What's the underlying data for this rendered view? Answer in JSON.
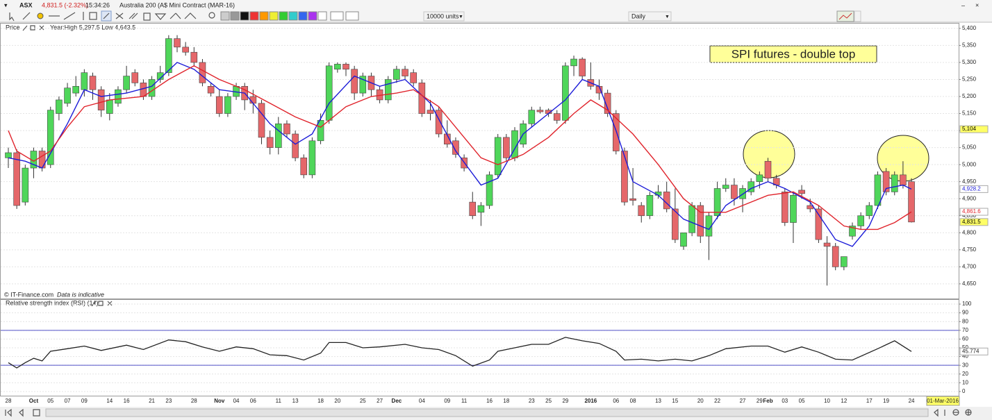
{
  "toolbar": {
    "symbol": "ASX",
    "last": "4,831.5 (-2.32%)",
    "time": "15:34:26",
    "instrument": "Australia 200 (A$ Mini Contract (MAR-16)",
    "units": "10000 units",
    "interval": "Daily"
  },
  "chart_data": [
    {
      "type": "candlestick",
      "title": "Price",
      "subtitle": "Year:High 5,297.5 Low 4,643.5",
      "annotation": "SPI futures - double top",
      "source": "© IT-Finance.com",
      "source_note": "Data is indicative",
      "date_tag": "01-Mar-2016",
      "categories": [
        "28",
        null,
        null,
        "Oct",
        null,
        "05",
        null,
        "07",
        null,
        "09",
        null,
        null,
        "14",
        null,
        "16",
        null,
        null,
        "21",
        null,
        "23",
        null,
        null,
        "28",
        null,
        null,
        "Nov",
        null,
        "04",
        null,
        "06",
        null,
        null,
        "11",
        null,
        "13",
        null,
        null,
        "18",
        null,
        "20",
        null,
        null,
        "25",
        null,
        "27",
        null,
        "Dec",
        null,
        null,
        "04",
        null,
        null,
        "09",
        null,
        "11",
        null,
        null,
        "16",
        null,
        "18",
        null,
        null,
        "23",
        null,
        "25",
        null,
        "29",
        null,
        null,
        "2016",
        null,
        null,
        "06",
        null,
        "08",
        null,
        null,
        "13",
        null,
        "15",
        null,
        null,
        "20",
        null,
        "22",
        null,
        null,
        "27",
        null,
        "29",
        "Feb",
        null,
        "03",
        null,
        "05",
        null,
        null,
        "10",
        null,
        "12",
        null,
        null,
        "17",
        null,
        "19",
        null,
        null,
        "24"
      ],
      "open": [
        5020,
        5035,
        4890,
        4990,
        5040,
        5000,
        5150,
        5180,
        5210,
        5220,
        5260,
        5220,
        5150,
        5180,
        5220,
        5270,
        5240,
        5200,
        5250,
        5270,
        5370,
        5345,
        5330,
        5300,
        5230,
        5200,
        5150,
        5200,
        5230,
        5200,
        5180,
        5080,
        5050,
        5120,
        5090,
        5020,
        4970,
        5070,
        5130,
        5280,
        5295,
        5280,
        5210,
        5260,
        5220,
        5190,
        5250,
        5280,
        5270,
        5240,
        5160,
        5160,
        5090,
        5070,
        5020,
        4890,
        4860,
        4880,
        4970,
        5080,
        5020,
        5060,
        5120,
        5160,
        5160,
        5150,
        5130,
        5290,
        5310,
        5250,
        5230,
        5210,
        5150,
        5040,
        4900,
        4880,
        4850,
        4910,
        4920,
        4870,
        4760,
        4800,
        4880,
        4790,
        4850,
        4930,
        4940,
        4900,
        4920,
        4950,
        5010,
        4960,
        4920,
        4830,
        4925,
        4880,
        4870,
        4770,
        4760,
        4700,
        4790,
        4820,
        4850,
        4880,
        4980,
        4920,
        4970,
        4950
      ],
      "high": [
        5050,
        5045,
        5000,
        5050,
        5050,
        5170,
        5200,
        5240,
        5260,
        5280,
        5270,
        5230,
        5210,
        5230,
        5290,
        5280,
        5250,
        5260,
        5290,
        5380,
        5380,
        5360,
        5345,
        5310,
        5240,
        5220,
        5210,
        5240,
        5240,
        5220,
        5190,
        5100,
        5140,
        5130,
        5100,
        5030,
        5080,
        5150,
        5300,
        5300,
        5300,
        5290,
        5270,
        5270,
        5230,
        5260,
        5290,
        5290,
        5280,
        5250,
        5190,
        5170,
        5130,
        5080,
        5030,
        4920,
        4890,
        4980,
        5090,
        5090,
        5110,
        5130,
        5170,
        5170,
        5165,
        5160,
        5300,
        5320,
        5315,
        5300,
        5250,
        5220,
        5160,
        5050,
        4990,
        4890,
        4920,
        4940,
        4950,
        4930,
        4800,
        4890,
        4890,
        4860,
        4950,
        4960,
        4960,
        4940,
        4960,
        4980,
        5020,
        4970,
        4930,
        4920,
        4940,
        4900,
        4880,
        4790,
        4770,
        4730,
        4830,
        4860,
        4890,
        4980,
        4990,
        4980,
        5010,
        4960
      ],
      "low": [
        4990,
        4870,
        4880,
        4960,
        4980,
        4990,
        5130,
        5170,
        5200,
        5200,
        5190,
        5140,
        5130,
        5170,
        5210,
        5230,
        5190,
        5190,
        5240,
        5260,
        5330,
        5320,
        5290,
        5230,
        5200,
        5140,
        5140,
        5190,
        5160,
        5150,
        5060,
        5030,
        5030,
        5080,
        5010,
        4960,
        4960,
        5060,
        5120,
        5270,
        5260,
        5190,
        5200,
        5200,
        5180,
        5180,
        5240,
        5250,
        5230,
        5140,
        5130,
        5080,
        5050,
        5020,
        4980,
        4840,
        4820,
        4870,
        4960,
        5010,
        5010,
        5050,
        5110,
        5150,
        5140,
        5120,
        5120,
        5260,
        5250,
        5220,
        5190,
        5140,
        5030,
        4880,
        4880,
        4830,
        4840,
        4900,
        4860,
        4770,
        4750,
        4790,
        4770,
        4720,
        4840,
        4920,
        4880,
        4860,
        4910,
        4930,
        4950,
        4930,
        4820,
        4770,
        4900,
        4860,
        4770,
        4645,
        4690,
        4690,
        4780,
        4810,
        4840,
        4870,
        4910,
        4910,
        4930,
        4830
      ],
      "close": [
        5035,
        4880,
        4990,
        5040,
        4990,
        5160,
        5190,
        5225,
        5230,
        5270,
        5220,
        5160,
        5190,
        5220,
        5260,
        5240,
        5200,
        5250,
        5270,
        5370,
        5345,
        5330,
        5300,
        5240,
        5210,
        5150,
        5200,
        5230,
        5190,
        5180,
        5080,
        5050,
        5120,
        5090,
        5020,
        4970,
        5070,
        5130,
        5290,
        5295,
        5280,
        5210,
        5260,
        5220,
        5190,
        5250,
        5280,
        5260,
        5240,
        5150,
        5150,
        5090,
        5060,
        5030,
        4990,
        4850,
        4880,
        4970,
        5080,
        5020,
        5100,
        5120,
        5160,
        5155,
        5150,
        5130,
        5290,
        5310,
        5260,
        5230,
        5210,
        5150,
        5040,
        4890,
        4895,
        4850,
        4910,
        4920,
        4870,
        4780,
        4800,
        4880,
        4790,
        4850,
        4930,
        4940,
        4900,
        4930,
        4950,
        4970,
        4960,
        4940,
        4830,
        4910,
        4915,
        4870,
        4780,
        4760,
        4700,
        4730,
        4820,
        4850,
        4880,
        4970,
        4920,
        4970,
        4940,
        4831.5
      ],
      "up_color": "#4fd65a",
      "down_color": "#e5676a",
      "lines": [
        {
          "color": "#1b1bd8",
          "x": [
            0,
            2,
            4,
            7,
            9,
            11,
            14,
            17,
            20,
            22,
            25,
            28,
            31,
            34,
            36,
            38,
            41,
            44,
            47,
            50,
            53,
            56,
            58,
            61,
            64,
            66,
            68,
            70,
            72,
            74,
            77,
            80,
            83,
            85,
            88,
            90,
            92,
            95,
            98,
            100,
            102,
            104,
            106,
            107
          ],
          "values": [
            5020,
            5010,
            4990,
            5120,
            5220,
            5200,
            5210,
            5230,
            5300,
            5280,
            5220,
            5210,
            5120,
            5060,
            5090,
            5180,
            5260,
            5230,
            5250,
            5180,
            5040,
            4940,
            4960,
            5090,
            5150,
            5190,
            5250,
            5230,
            5100,
            4950,
            4910,
            4840,
            4810,
            4880,
            4930,
            4950,
            4930,
            4890,
            4780,
            4760,
            4820,
            4930,
            4940,
            4928.2
          ]
        },
        {
          "color": "#e0232b",
          "x": [
            0,
            1,
            3,
            5,
            7,
            9,
            12,
            16,
            19,
            22,
            25,
            28,
            31,
            34,
            37,
            40,
            43,
            46,
            48,
            51,
            54,
            56,
            58,
            61,
            64,
            67,
            69,
            71,
            74,
            77,
            80,
            82,
            85,
            87,
            90,
            93,
            96,
            99,
            101,
            103,
            105,
            107
          ],
          "values": [
            5100,
            5040,
            5010,
            5040,
            5110,
            5170,
            5190,
            5200,
            5250,
            5290,
            5250,
            5220,
            5180,
            5140,
            5110,
            5170,
            5200,
            5210,
            5220,
            5170,
            5080,
            5020,
            5000,
            5030,
            5080,
            5150,
            5190,
            5160,
            5090,
            5000,
            4900,
            4860,
            4860,
            4880,
            4910,
            4920,
            4880,
            4820,
            4810,
            4810,
            4830,
            4861.6
          ]
        }
      ],
      "ylim": [
        4609,
        5414
      ],
      "yticks": [
        {
          "value": 5400,
          "label": "5,400"
        },
        {
          "value": 5350,
          "label": "5,350"
        },
        {
          "value": 5300,
          "label": "5,300"
        },
        {
          "value": 5250,
          "label": "5,250"
        },
        {
          "value": 5200,
          "label": "5,200"
        },
        {
          "value": 5150,
          "label": "5,150"
        },
        {
          "value": 5100,
          "label": "5,100"
        },
        {
          "value": 5050,
          "label": "5,050"
        },
        {
          "value": 5000,
          "label": "5,000"
        },
        {
          "value": 4950,
          "label": "4,950"
        },
        {
          "value": 4900,
          "label": "4,900"
        },
        {
          "value": 4850,
          "label": "4,850"
        },
        {
          "value": 4800,
          "label": "4,800"
        },
        {
          "value": 4750,
          "label": "4,750"
        },
        {
          "value": 4700,
          "label": "4,700"
        },
        {
          "value": 4650,
          "label": "4,650"
        }
      ],
      "price_tags": [
        {
          "value": 5104,
          "label": "5,104",
          "color": "#000000",
          "background": "#ffff66"
        },
        {
          "value": 4928.2,
          "label": "4,928.2",
          "color": "#1b1bd8",
          "background": "#ffffff"
        },
        {
          "value": 4861.6,
          "label": "4,861.6",
          "color": "#e0232b",
          "background": "#ffffff"
        },
        {
          "value": 4831.5,
          "label": "4,831.5",
          "color": "#000000",
          "background": "#ffff66"
        }
      ],
      "grid": true
    },
    {
      "type": "line",
      "title": "Relative strength index (RSI) (14)",
      "series": [
        {
          "color": "#222222",
          "x": [
            0,
            1,
            2,
            3,
            4,
            5,
            7,
            9,
            11,
            14,
            16,
            19,
            21,
            23,
            25,
            27,
            29,
            31,
            33,
            35,
            37,
            38,
            40,
            42,
            44,
            47,
            49,
            51,
            53,
            55,
            57,
            58,
            60,
            62,
            64,
            66,
            68,
            70,
            72,
            73,
            75,
            77,
            79,
            81,
            83,
            85,
            88,
            90,
            92,
            94,
            96,
            98,
            100,
            103,
            105,
            107
          ],
          "values": [
            33,
            27,
            33,
            38,
            35,
            46,
            49,
            52,
            47,
            53,
            48,
            59,
            57,
            51,
            46,
            51,
            49,
            42,
            41,
            36,
            44,
            56,
            56,
            50,
            51,
            54,
            50,
            48,
            41,
            29,
            36,
            46,
            50,
            54,
            54,
            62,
            58,
            55,
            46,
            36,
            37,
            35,
            37,
            35,
            41,
            49,
            52,
            52,
            45,
            51,
            45,
            37,
            36,
            49,
            58,
            45.774
          ]
        }
      ],
      "levels": [
        70,
        30
      ],
      "level_color": "#5050c8",
      "ylim": [
        -4.8,
        104.8
      ],
      "yticks": [
        0,
        10,
        20,
        30,
        40,
        50,
        60,
        70,
        80,
        90,
        100
      ],
      "last_tag": 45.774,
      "grid": true
    }
  ]
}
